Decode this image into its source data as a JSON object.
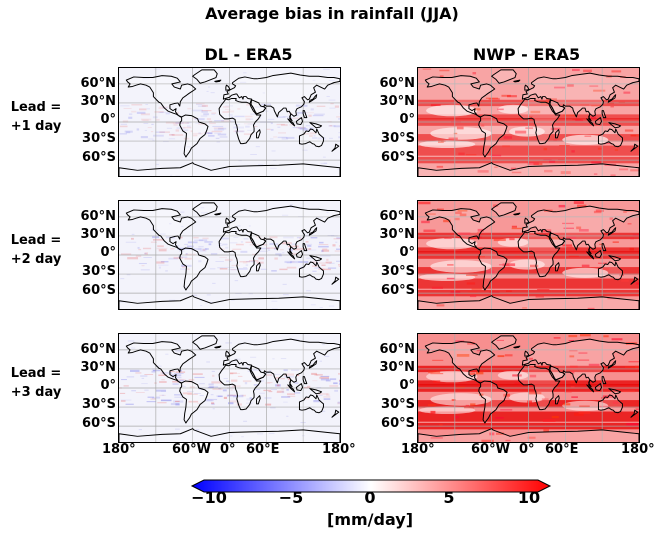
{
  "figure": {
    "title": "Average bias in rainfall (JJA)",
    "columns": [
      {
        "title": "DL - ERA5",
        "style": "dl"
      },
      {
        "title": "NWP - ERA5",
        "style": "nwp"
      }
    ],
    "rows": [
      {
        "line1": "Lead =",
        "line2": "+1 day",
        "intensity": 0.35
      },
      {
        "line1": "Lead =",
        "line2": "+2 day",
        "intensity": 0.6
      },
      {
        "line1": "Lead =",
        "line2": "+3 day",
        "intensity": 0.8
      }
    ],
    "lat_labels": [
      "60°N",
      "30°N",
      "0°",
      "30°S",
      "60°S"
    ],
    "lon_labels": [
      "180°",
      "60°W",
      "0°",
      "60°E",
      "180°"
    ]
  },
  "colorbar": {
    "ticks": [
      "−10",
      "−5",
      "0",
      "5",
      "10"
    ],
    "label": "[mm/day]",
    "range": [
      -10,
      10
    ],
    "colors": {
      "low": "#0000ff",
      "mid": "#ffffff",
      "high": "#ff0000"
    }
  }
}
